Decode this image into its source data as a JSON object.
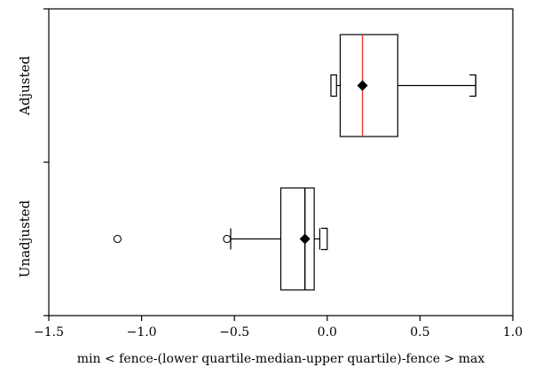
{
  "chart_data": {
    "type": "box",
    "orientation": "horizontal",
    "xlabel": "min < fence-(lower quartile-median-upper quartile)-fence > max",
    "ylabel": "",
    "xlim": [
      -1.5,
      1.0
    ],
    "xticks": [
      -1.5,
      -1.0,
      -0.5,
      0.0,
      0.5,
      1.0
    ],
    "xtick_labels": [
      "−1.5",
      "−1.0",
      "−0.5",
      "0.0",
      "0.5",
      "1.0"
    ],
    "grid": false,
    "categories": [
      "Adjusted",
      "Unadjusted"
    ],
    "boxes": [
      {
        "label": "Adjusted",
        "min": 0.02,
        "max": 0.8,
        "lower_fence": 0.05,
        "q1": 0.07,
        "median": 0.19,
        "mean": 0.19,
        "q3": 0.38,
        "upper_fence": 0.8,
        "outliers": [],
        "median_color": "#e8372c"
      },
      {
        "label": "Unadjusted",
        "min": -1.13,
        "max": 0.0,
        "lower_fence": -0.52,
        "q1": -0.25,
        "median": -0.12,
        "mean": -0.12,
        "q3": -0.07,
        "upper_fence": -0.04,
        "outliers": [
          -1.13,
          -0.54
        ],
        "median_color": "#000000"
      }
    ]
  }
}
